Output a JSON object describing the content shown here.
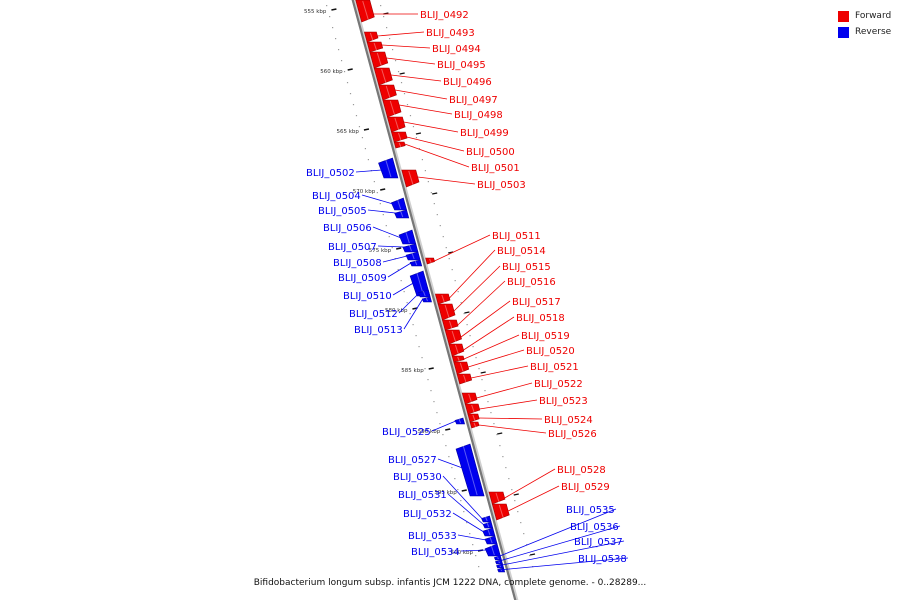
{
  "legend": {
    "forward_label": "Forward",
    "reverse_label": "Reverse",
    "forward_color": "#ee0000",
    "reverse_color": "#0000ee"
  },
  "caption": "Bifidobacterium longum subsp. infantis JCM 1222 DNA, complete genome. - 0..28289...",
  "axis_ticks": [
    {
      "label": "555 kbp"
    },
    {
      "label": "560 kbp"
    },
    {
      "label": "565 kbp"
    },
    {
      "label": "570 kbp"
    },
    {
      "label": "575 kbp"
    },
    {
      "label": "580 kbp"
    },
    {
      "label": "585 kbp"
    },
    {
      "label": "590 kbp"
    },
    {
      "label": "595 kbp"
    },
    {
      "label": "600 kbp"
    }
  ],
  "genes": [
    {
      "id": "BLIJ_0492",
      "strand": "forward"
    },
    {
      "id": "BLIJ_0493",
      "strand": "forward"
    },
    {
      "id": "BLIJ_0494",
      "strand": "forward"
    },
    {
      "id": "BLIJ_0495",
      "strand": "forward"
    },
    {
      "id": "BLIJ_0496",
      "strand": "forward"
    },
    {
      "id": "BLIJ_0497",
      "strand": "forward"
    },
    {
      "id": "BLIJ_0498",
      "strand": "forward"
    },
    {
      "id": "BLIJ_0499",
      "strand": "forward"
    },
    {
      "id": "BLIJ_0500",
      "strand": "forward"
    },
    {
      "id": "BLIJ_0501",
      "strand": "forward"
    },
    {
      "id": "BLIJ_0502",
      "strand": "reverse"
    },
    {
      "id": "BLIJ_0503",
      "strand": "forward"
    },
    {
      "id": "BLIJ_0504",
      "strand": "reverse"
    },
    {
      "id": "BLIJ_0505",
      "strand": "reverse"
    },
    {
      "id": "BLIJ_0506",
      "strand": "reverse"
    },
    {
      "id": "BLIJ_0507",
      "strand": "reverse"
    },
    {
      "id": "BLIJ_0508",
      "strand": "reverse"
    },
    {
      "id": "BLIJ_0509",
      "strand": "reverse"
    },
    {
      "id": "BLIJ_0510",
      "strand": "reverse"
    },
    {
      "id": "BLIJ_0511",
      "strand": "forward"
    },
    {
      "id": "BLIJ_0512",
      "strand": "reverse"
    },
    {
      "id": "BLIJ_0513",
      "strand": "reverse"
    },
    {
      "id": "BLIJ_0514",
      "strand": "forward"
    },
    {
      "id": "BLIJ_0515",
      "strand": "forward"
    },
    {
      "id": "BLIJ_0516",
      "strand": "forward"
    },
    {
      "id": "BLIJ_0517",
      "strand": "forward"
    },
    {
      "id": "BLIJ_0518",
      "strand": "forward"
    },
    {
      "id": "BLIJ_0519",
      "strand": "forward"
    },
    {
      "id": "BLIJ_0520",
      "strand": "forward"
    },
    {
      "id": "BLIJ_0521",
      "strand": "forward"
    },
    {
      "id": "BLIJ_0522",
      "strand": "forward"
    },
    {
      "id": "BLIJ_0523",
      "strand": "forward"
    },
    {
      "id": "BLIJ_0524",
      "strand": "forward"
    },
    {
      "id": "BLIJ_0525",
      "strand": "reverse"
    },
    {
      "id": "BLIJ_0526",
      "strand": "forward"
    },
    {
      "id": "BLIJ_0527",
      "strand": "reverse"
    },
    {
      "id": "BLIJ_0528",
      "strand": "forward"
    },
    {
      "id": "BLIJ_0529",
      "strand": "forward"
    },
    {
      "id": "BLIJ_0530",
      "strand": "reverse"
    },
    {
      "id": "BLIJ_0531",
      "strand": "reverse"
    },
    {
      "id": "BLIJ_0532",
      "strand": "reverse"
    },
    {
      "id": "BLIJ_0533",
      "strand": "reverse"
    },
    {
      "id": "BLIJ_0534",
      "strand": "reverse"
    },
    {
      "id": "BLIJ_0535",
      "strand": "reverse"
    },
    {
      "id": "BLIJ_0536",
      "strand": "reverse"
    },
    {
      "id": "BLIJ_0537",
      "strand": "reverse"
    },
    {
      "id": "BLIJ_0538",
      "strand": "reverse"
    }
  ]
}
